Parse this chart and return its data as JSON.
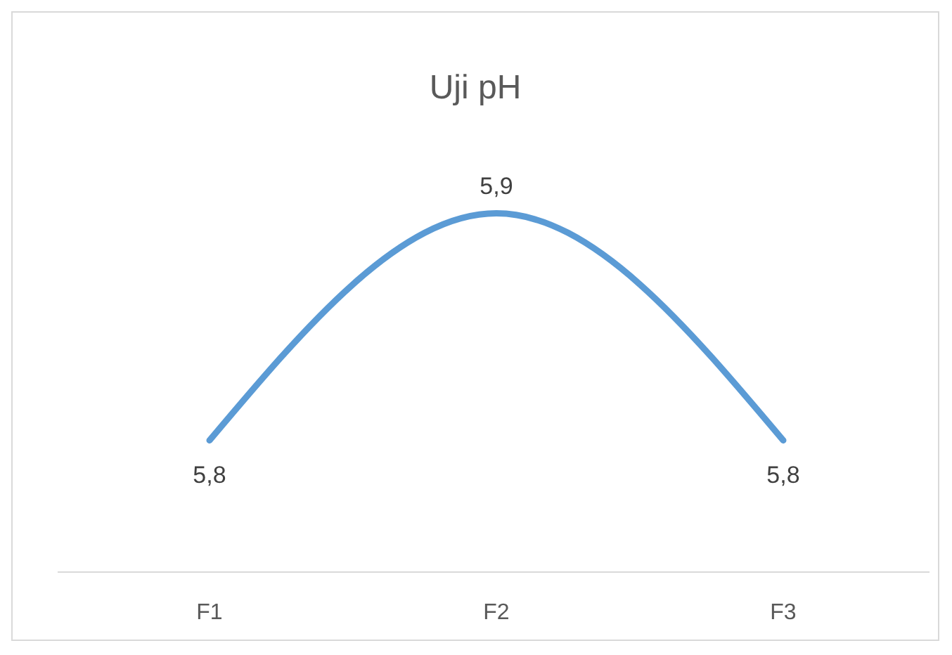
{
  "chart_data": {
    "type": "line",
    "title": "Uji pH",
    "categories": [
      "F1",
      "F2",
      "F3"
    ],
    "series": [
      {
        "color": "#5b9bd5",
        "values": [
          5.8,
          5.9,
          5.8
        ],
        "value_labels": [
          "5,8",
          "5,9",
          "5,8"
        ]
      }
    ],
    "tick_labels": "x",
    "marker": "none",
    "line_style": "solid"
  }
}
